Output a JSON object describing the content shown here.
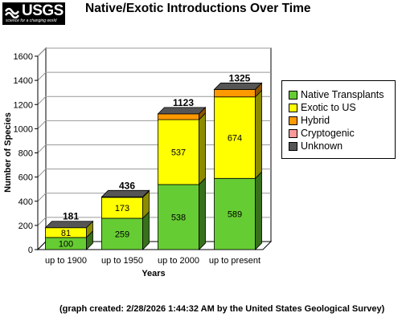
{
  "logo": {
    "text": "USGS",
    "tagline": "science for a changing world"
  },
  "title": "Native/Exotic Introductions Over Time",
  "footer": "(graph created: 2/28/2026 1:44:32 AM by the United States Geological Survey)",
  "chart_data": {
    "type": "bar",
    "stacked": true,
    "categories": [
      "up to 1900",
      "up to 1950",
      "up to 2000",
      "up to present"
    ],
    "series": [
      {
        "name": "Native Transplants",
        "color": "#66cc33",
        "values": [
          100,
          259,
          538,
          589
        ]
      },
      {
        "name": "Exotic to US",
        "color": "#ffff00",
        "values": [
          81,
          173,
          537,
          674
        ]
      },
      {
        "name": "Hybrid",
        "color": "#ff9900",
        "values": [
          0,
          4,
          48,
          62
        ]
      },
      {
        "name": "Cryptogenic",
        "color": "#ff9999",
        "values": [
          0,
          0,
          0,
          0
        ]
      },
      {
        "name": "Unknown",
        "color": "#555555",
        "values": [
          0,
          0,
          0,
          0
        ]
      }
    ],
    "totals": [
      181,
      436,
      1123,
      1325
    ],
    "segment_labels": [
      [
        "100",
        "81",
        "",
        "",
        ""
      ],
      [
        "259",
        "173",
        "",
        "",
        ""
      ],
      [
        "538",
        "537",
        "",
        "",
        ""
      ],
      [
        "589",
        "674",
        "",
        "",
        ""
      ]
    ],
    "xlabel": "Years",
    "ylabel": "Number of Species",
    "ylim": [
      0,
      1600
    ],
    "yticks": [
      0,
      200,
      400,
      600,
      800,
      1000,
      1200,
      1400,
      1600
    ],
    "grid": true,
    "legend_position": "right"
  }
}
